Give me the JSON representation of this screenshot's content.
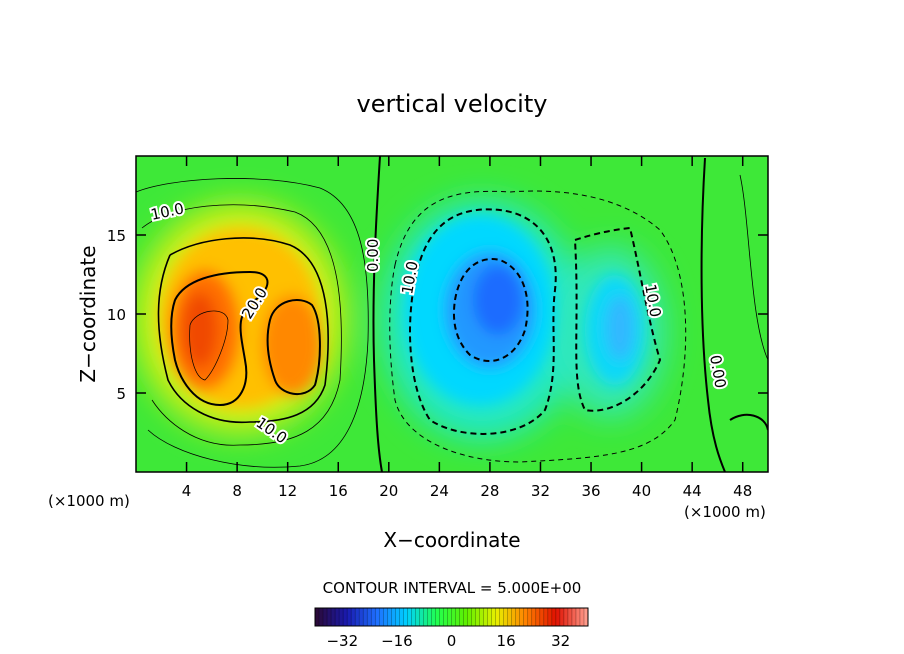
{
  "chart_data": {
    "type": "heatmap",
    "title": "vertical velocity",
    "xlabel": "X−coordinate",
    "ylabel": "Z−coordinate",
    "x_unit": "(×1000 m)",
    "y_unit": "(×1000 m)",
    "xlim": [
      0,
      50
    ],
    "ylim": [
      0,
      20
    ],
    "x_ticks": [
      "4",
      "8",
      "12",
      "16",
      "20",
      "24",
      "28",
      "32",
      "36",
      "40",
      "44",
      "48"
    ],
    "y_ticks": [
      "5",
      "10",
      "15"
    ],
    "contour_interval_text": "CONTOUR INTERVAL = 5.000E+00",
    "contour_labels": [
      "10.0",
      "20.0",
      "10.0",
      "0.00",
      "10.0",
      "10.0",
      "0.00"
    ],
    "colorbar": {
      "range": [
        -40,
        40
      ],
      "ticks": [
        "−32",
        "−16",
        "0",
        "16",
        "32"
      ],
      "tick_values": [
        -32,
        -16,
        0,
        16,
        32
      ],
      "colors": [
        "#2a0a3a",
        "#1a1ab0",
        "#1e70ff",
        "#00d0ff",
        "#20ff50",
        "#60f000",
        "#e8f000",
        "#ff8000",
        "#e01000",
        "#ff9a8a"
      ]
    },
    "features": [
      {
        "name": "updraft",
        "x_center": 6,
        "z_center": 9,
        "peak": 26
      },
      {
        "name": "updraft",
        "x_center": 13,
        "z_center": 8,
        "peak": 24
      },
      {
        "name": "downdraft",
        "x_center": 29,
        "z_center": 11,
        "peak": -22
      },
      {
        "name": "downdraft",
        "x_center": 38,
        "z_center": 9,
        "peak": -12
      }
    ]
  }
}
